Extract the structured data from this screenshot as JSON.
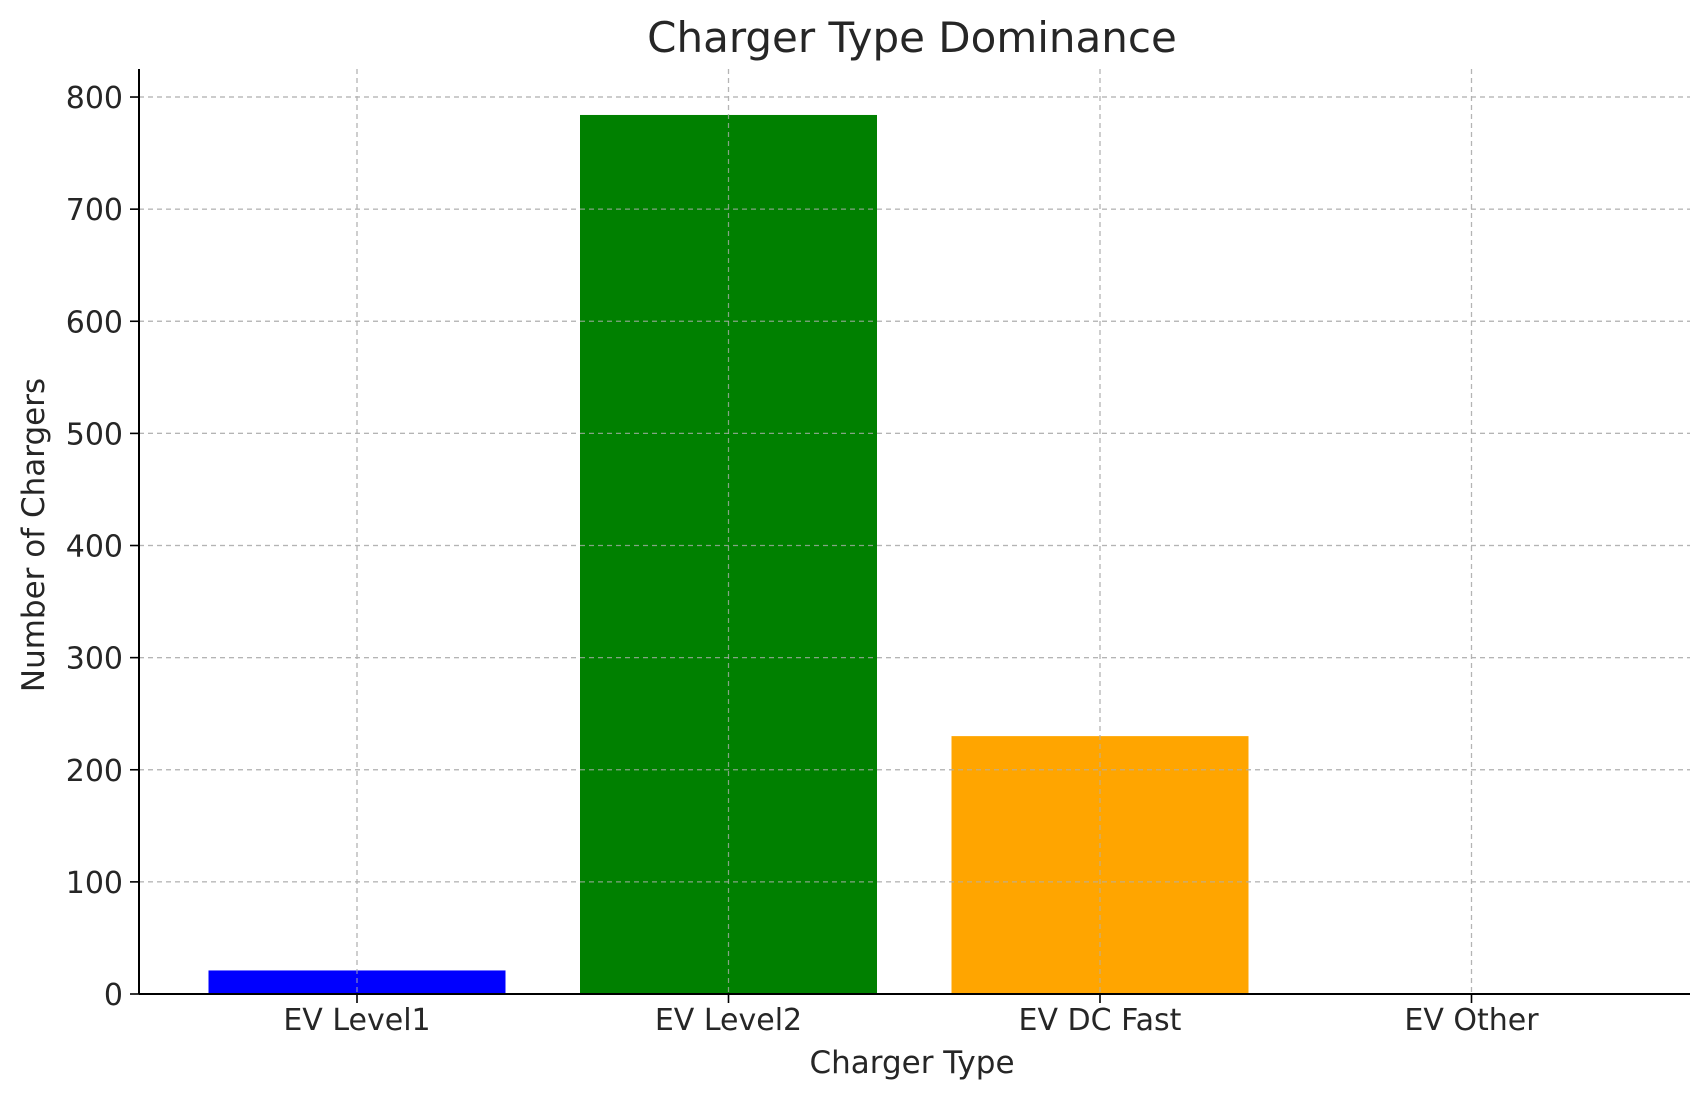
{
  "chart_data": {
    "type": "bar",
    "title": "Charger Type Dominance",
    "xlabel": "Charger Type",
    "ylabel": "Number of Chargers",
    "categories": [
      "EV Level1",
      "EV Level2",
      "EV DC Fast",
      "EV Other"
    ],
    "values": [
      21,
      784,
      230,
      0
    ],
    "colors": [
      "#0000ff",
      "#008000",
      "#ffa500",
      "#000000"
    ],
    "ylim": [
      0,
      825
    ],
    "yticks": [
      0,
      100,
      200,
      300,
      400,
      500,
      600,
      700,
      800
    ],
    "grid": true
  }
}
